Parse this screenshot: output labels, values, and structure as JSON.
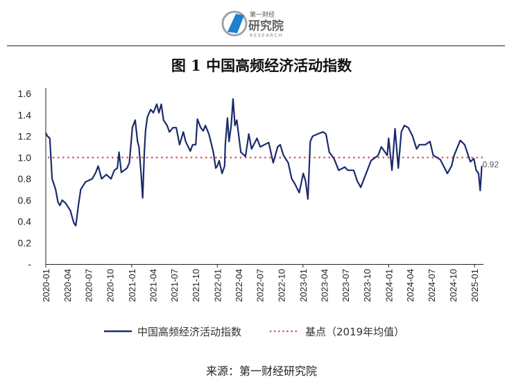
{
  "header": {
    "logo_text_top": "第一财经",
    "logo_text_main": "研究院",
    "logo_text_sub": "RESEARCH"
  },
  "chart_data": {
    "type": "line",
    "title": "图 1  中国高频经济活动指数",
    "xlabel": "",
    "ylabel": "",
    "ylim": [
      0,
      1.6
    ],
    "yticks": [
      0,
      0.2,
      0.4,
      0.6,
      0.8,
      1.0,
      1.2,
      1.4,
      1.6
    ],
    "ytick_labels": [
      "-",
      "0.2",
      "0.4",
      "0.6",
      "0.8",
      "1.0",
      "1.2",
      "1.4",
      "1.6"
    ],
    "xlim": [
      "2020-01-01",
      "2025-02-05"
    ],
    "xtick_labels": [
      "2020-01",
      "2020-04",
      "2020-07",
      "2020-10",
      "2021-01",
      "2021-04",
      "2021-07",
      "2021-10",
      "2022-01",
      "2022-04",
      "2022-07",
      "2022-10",
      "2023-01",
      "2023-04",
      "2023-07",
      "2023-10",
      "2024-01",
      "2024-04",
      "2024-07",
      "2024-10",
      "2025-01"
    ],
    "grid": false,
    "legend_position": "bottom",
    "colors": {
      "series": "#1b2a6b",
      "baseline": "#d9534f"
    },
    "series": [
      {
        "name": "中国高频经济活动指数",
        "points": [
          [
            "2020-01-01",
            1.23
          ],
          [
            "2020-01-08",
            1.2
          ],
          [
            "2020-01-18",
            1.18
          ],
          [
            "2020-01-23",
            1.0
          ],
          [
            "2020-01-28",
            0.8
          ],
          [
            "2020-02-12",
            0.7
          ],
          [
            "2020-02-22",
            0.58
          ],
          [
            "2020-03-01",
            0.55
          ],
          [
            "2020-03-11",
            0.6
          ],
          [
            "2020-03-26",
            0.57
          ],
          [
            "2020-04-15",
            0.5
          ],
          [
            "2020-04-25",
            0.42
          ],
          [
            "2020-05-01",
            0.38
          ],
          [
            "2020-05-08",
            0.36
          ],
          [
            "2020-05-19",
            0.55
          ],
          [
            "2020-05-29",
            0.7
          ],
          [
            "2020-06-18",
            0.77
          ],
          [
            "2020-07-17",
            0.8
          ],
          [
            "2020-08-01",
            0.86
          ],
          [
            "2020-08-11",
            0.92
          ],
          [
            "2020-08-26",
            0.8
          ],
          [
            "2020-09-15",
            0.84
          ],
          [
            "2020-10-05",
            0.8
          ],
          [
            "2020-10-19",
            0.88
          ],
          [
            "2020-11-01",
            0.9
          ],
          [
            "2020-11-08",
            1.05
          ],
          [
            "2020-11-18",
            0.86
          ],
          [
            "2020-12-12",
            0.9
          ],
          [
            "2020-12-22",
            0.95
          ],
          [
            "2021-01-01",
            1.2
          ],
          [
            "2021-01-04",
            1.28
          ],
          [
            "2021-01-16",
            1.35
          ],
          [
            "2021-01-26",
            1.15
          ],
          [
            "2021-02-01",
            1.1
          ],
          [
            "2021-02-10",
            0.85
          ],
          [
            "2021-02-17",
            0.62
          ],
          [
            "2021-02-24",
            1.05
          ],
          [
            "2021-03-01",
            1.25
          ],
          [
            "2021-03-09",
            1.38
          ],
          [
            "2021-03-23",
            1.45
          ],
          [
            "2021-04-03",
            1.42
          ],
          [
            "2021-04-18",
            1.5
          ],
          [
            "2021-04-27",
            1.42
          ],
          [
            "2021-05-07",
            1.5
          ],
          [
            "2021-05-17",
            1.35
          ],
          [
            "2021-06-01",
            1.3
          ],
          [
            "2021-06-11",
            1.24
          ],
          [
            "2021-06-26",
            1.28
          ],
          [
            "2021-07-10",
            1.28
          ],
          [
            "2021-07-24",
            1.12
          ],
          [
            "2021-08-09",
            1.24
          ],
          [
            "2021-08-19",
            1.15
          ],
          [
            "2021-09-08",
            1.06
          ],
          [
            "2021-09-18",
            1.12
          ],
          [
            "2021-10-01",
            1.12
          ],
          [
            "2021-10-08",
            1.36
          ],
          [
            "2021-10-22",
            1.28
          ],
          [
            "2021-11-02",
            1.25
          ],
          [
            "2021-11-11",
            1.3
          ],
          [
            "2021-11-26",
            1.22
          ],
          [
            "2021-12-15",
            1.05
          ],
          [
            "2021-12-25",
            0.9
          ],
          [
            "2022-01-01",
            0.92
          ],
          [
            "2022-01-09",
            0.97
          ],
          [
            "2022-01-21",
            0.85
          ],
          [
            "2022-02-01",
            0.92
          ],
          [
            "2022-02-04",
            1.12
          ],
          [
            "2022-02-13",
            1.37
          ],
          [
            "2022-02-20",
            1.15
          ],
          [
            "2022-03-01",
            1.3
          ],
          [
            "2022-03-09",
            1.55
          ],
          [
            "2022-03-17",
            1.3
          ],
          [
            "2022-03-25",
            1.35
          ],
          [
            "2022-04-11",
            1.05
          ],
          [
            "2022-04-26",
            1.02
          ],
          [
            "2022-05-01",
            1.01
          ],
          [
            "2022-05-15",
            1.22
          ],
          [
            "2022-05-27",
            1.08
          ],
          [
            "2022-06-19",
            1.18
          ],
          [
            "2022-07-03",
            1.1
          ],
          [
            "2022-08-08",
            1.14
          ],
          [
            "2022-08-27",
            0.95
          ],
          [
            "2022-09-15",
            1.1
          ],
          [
            "2022-09-26",
            1.12
          ],
          [
            "2022-10-10",
            1.02
          ],
          [
            "2022-10-30",
            0.95
          ],
          [
            "2022-11-14",
            0.8
          ],
          [
            "2022-11-28",
            0.75
          ],
          [
            "2022-12-16",
            0.67
          ],
          [
            "2023-01-02",
            0.85
          ],
          [
            "2023-01-12",
            0.78
          ],
          [
            "2023-01-22",
            0.61
          ],
          [
            "2023-02-01",
            1.15
          ],
          [
            "2023-02-11",
            1.2
          ],
          [
            "2023-03-15",
            1.23
          ],
          [
            "2023-03-28",
            1.24
          ],
          [
            "2023-04-09",
            1.22
          ],
          [
            "2023-04-23",
            1.05
          ],
          [
            "2023-05-13",
            0.99
          ],
          [
            "2023-06-02",
            0.88
          ],
          [
            "2023-06-28",
            0.91
          ],
          [
            "2023-07-11",
            0.88
          ],
          [
            "2023-08-05",
            0.88
          ],
          [
            "2023-08-20",
            0.78
          ],
          [
            "2023-09-04",
            0.72
          ],
          [
            "2023-09-27",
            0.85
          ],
          [
            "2023-10-18",
            0.97
          ],
          [
            "2023-11-17",
            1.02
          ],
          [
            "2023-12-01",
            1.1
          ],
          [
            "2023-12-26",
            1.02
          ],
          [
            "2024-01-01",
            1.18
          ],
          [
            "2024-01-15",
            0.88
          ],
          [
            "2024-01-28",
            1.27
          ],
          [
            "2024-02-11",
            0.9
          ],
          [
            "2024-02-24",
            1.24
          ],
          [
            "2024-03-08",
            1.3
          ],
          [
            "2024-03-25",
            1.28
          ],
          [
            "2024-04-12",
            1.2
          ],
          [
            "2024-04-29",
            1.08
          ],
          [
            "2024-05-11",
            1.12
          ],
          [
            "2024-06-05",
            1.12
          ],
          [
            "2024-06-25",
            1.15
          ],
          [
            "2024-07-09",
            1.02
          ],
          [
            "2024-08-08",
            0.98
          ],
          [
            "2024-09-07",
            0.85
          ],
          [
            "2024-09-25",
            0.92
          ],
          [
            "2024-10-06",
            1.02
          ],
          [
            "2024-11-01",
            1.16
          ],
          [
            "2024-11-20",
            1.12
          ],
          [
            "2024-12-14",
            0.96
          ],
          [
            "2024-12-29",
            0.99
          ],
          [
            "2025-01-08",
            0.88
          ],
          [
            "2025-01-18",
            0.85
          ],
          [
            "2025-01-25",
            0.69
          ],
          [
            "2025-02-01",
            0.92
          ]
        ]
      },
      {
        "name": "基点（2019年均值）",
        "value": 1.0,
        "style": "dotted"
      }
    ],
    "annotations": [
      {
        "text": "0.92"
      }
    ]
  },
  "source": "来源：第一财经研究院"
}
